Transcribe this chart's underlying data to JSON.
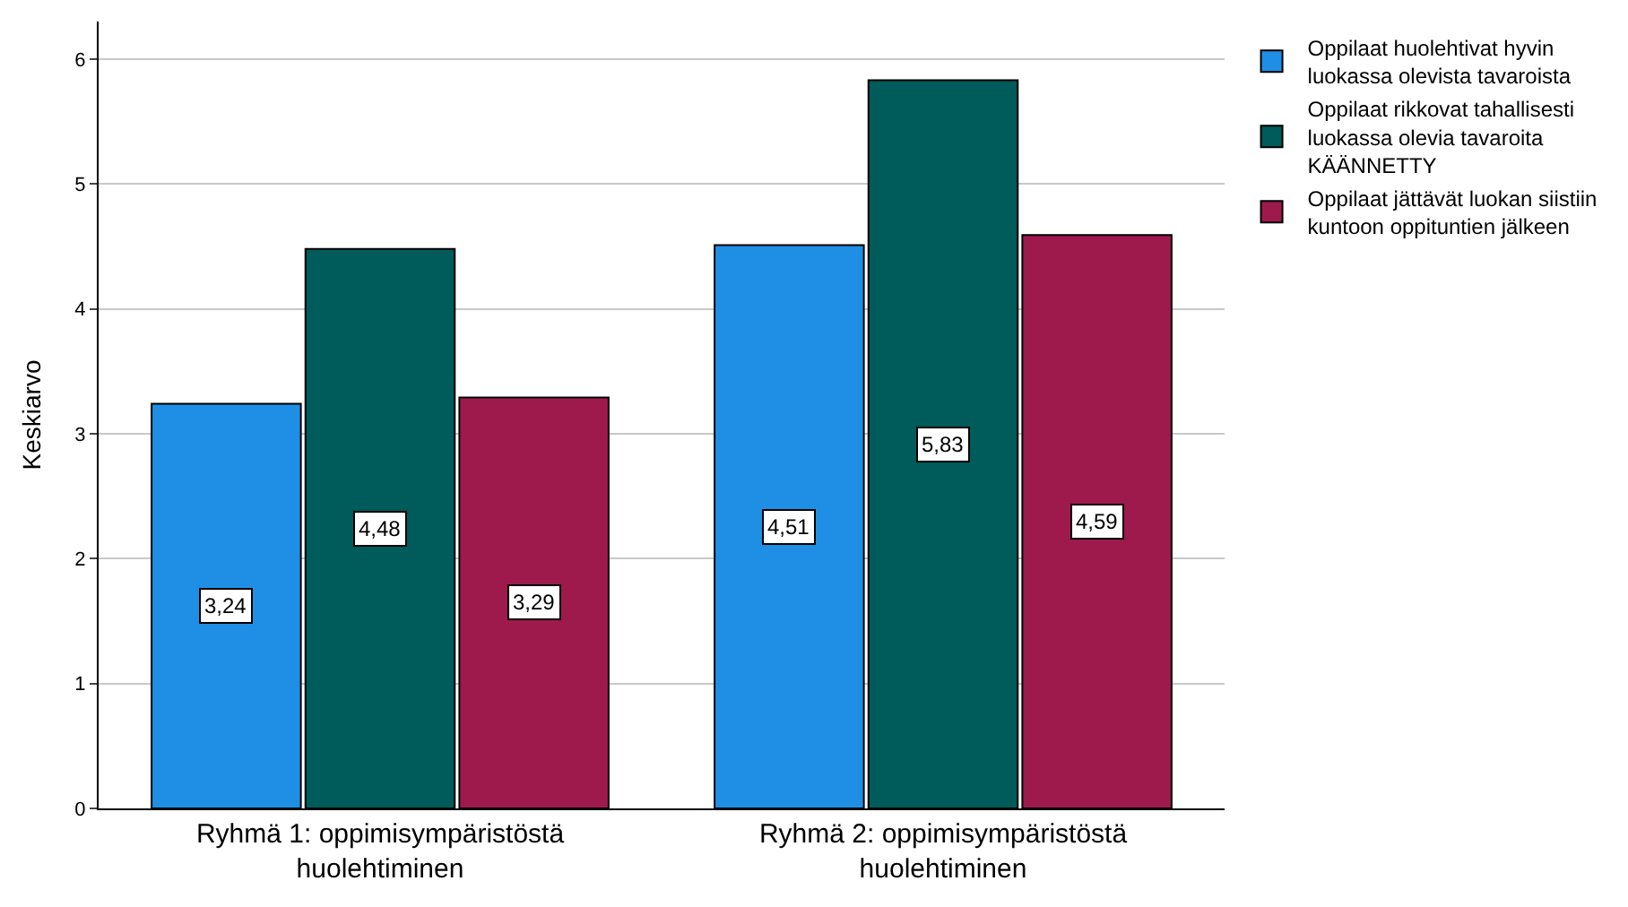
{
  "chart_data": {
    "type": "bar",
    "ylabel": "Keskiarvo",
    "categories": [
      "Ryhmä 1: oppimisympäristöstä huolehtiminen",
      "Ryhmä 2: oppimisympäristöstä huolehtiminen"
    ],
    "series": [
      {
        "name": "Oppilaat huolehtivat hyvin luokassa olevista tavaroista",
        "color": "#1f8fe6",
        "values": [
          3.24,
          4.51
        ],
        "value_labels": [
          "3,24",
          "4,51"
        ]
      },
      {
        "name": "Oppilaat rikkovat tahallisesti luokassa olevia tavaroita KÄÄNNETTY",
        "color": "#005b5b",
        "values": [
          4.48,
          5.83
        ],
        "value_labels": [
          "4,48",
          "5,83"
        ]
      },
      {
        "name": "Oppilaat jättävät luokan siistiin kuntoon oppituntien jälkeen",
        "color": "#9e1a4c",
        "values": [
          3.29,
          4.59
        ],
        "value_labels": [
          "3,29",
          "4,59"
        ]
      }
    ],
    "ylim": [
      0,
      6.3
    ],
    "yticks": [
      0,
      1,
      2,
      3,
      4,
      5,
      6
    ],
    "grid": "y",
    "legend": "top right"
  }
}
